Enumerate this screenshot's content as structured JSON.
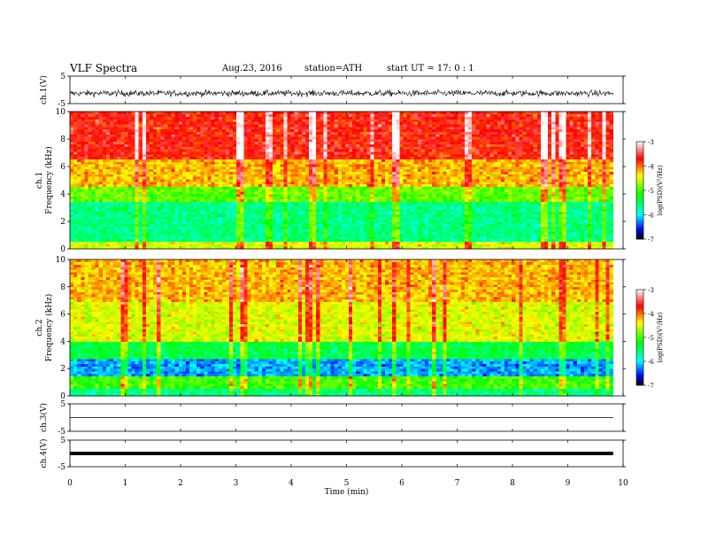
{
  "header": {
    "title": "VLF  Spectra",
    "date": "Aug.23, 2016",
    "station": "station=ATH",
    "start": "start  UT  =   17: 0  : 1"
  },
  "chart_data": [
    {
      "type": "line",
      "panel": "ch.1 waveform",
      "ylabel": "ch.1(V)",
      "ylim": [
        -5,
        5
      ],
      "y_ticks": [
        "5",
        "-5"
      ],
      "xlim": [
        0,
        10
      ],
      "x_extent_min": 9.82,
      "signal_range": [
        -3,
        0.5
      ],
      "trace_color": "#000000"
    },
    {
      "type": "heatmap",
      "panel": "ch.1 spectrogram",
      "ylabel": "ch.1\nFrequency (kHz)",
      "ylabel_lines": [
        "ch.1",
        "Frequency (kHz)"
      ],
      "ylim": [
        0,
        10
      ],
      "y_ticks": [
        "10",
        "8",
        "6",
        "4",
        "2",
        "0"
      ],
      "xlim": [
        0,
        10
      ],
      "x_extent_min": 9.82,
      "dominant_levels_by_freq_kHz": [
        {
          "from": 0,
          "to": 0.5,
          "level": -4.5
        },
        {
          "from": 0.5,
          "to": 3.5,
          "level": -5.6
        },
        {
          "from": 3.5,
          "to": 4.5,
          "level": -4.9
        },
        {
          "from": 4.5,
          "to": 6.5,
          "level": -4.2
        },
        {
          "from": 6.5,
          "to": 10,
          "level": -3.7
        }
      ]
    },
    {
      "type": "heatmap",
      "panel": "ch.2 spectrogram",
      "ylabel": "ch.2\nFrequency (kHz)",
      "ylabel_lines": [
        "ch.2",
        "Frequency (kHz)"
      ],
      "ylim": [
        0,
        10
      ],
      "y_ticks": [
        "10",
        "8",
        "6",
        "4",
        "2",
        "0"
      ],
      "xlim": [
        0,
        10
      ],
      "x_extent_min": 9.82,
      "dominant_levels_by_freq_kHz": [
        {
          "from": 0,
          "to": 0.5,
          "level": -5.6
        },
        {
          "from": 0.5,
          "to": 1.5,
          "level": -5.0
        },
        {
          "from": 1.5,
          "to": 2.7,
          "level": -6.2
        },
        {
          "from": 2.7,
          "to": 4,
          "level": -5.4
        },
        {
          "from": 4,
          "to": 7,
          "level": -4.5
        },
        {
          "from": 7,
          "to": 10,
          "level": -4.2
        }
      ]
    },
    {
      "type": "line",
      "panel": "ch.3 waveform",
      "ylabel": "ch.3(V)",
      "ylim": [
        -5,
        5
      ],
      "y_ticks": [
        "5",
        "-5"
      ],
      "xlim": [
        0,
        10
      ],
      "x_extent_min": 9.82,
      "signal_level": 0,
      "trace_color": "#000000"
    },
    {
      "type": "line",
      "panel": "ch.4 waveform",
      "ylabel": "ch.4(V)",
      "ylim": [
        -5,
        5
      ],
      "y_ticks": [
        "5",
        "-5"
      ],
      "xlim": [
        0,
        10
      ],
      "x_extent_min": 9.82,
      "signal_level": 0,
      "trace_color": "#000000"
    }
  ],
  "colorbars": [
    {
      "label": "log(PSD)(V²/Hz)",
      "ticks": [
        "-3",
        "-4",
        "-5",
        "-6",
        "-7"
      ],
      "range": [
        -7,
        -3
      ],
      "colors": [
        "#000000",
        "#0000ff",
        "#00ffff",
        "#00ff00",
        "#ffff00",
        "#ff0000",
        "#ffffff"
      ]
    },
    {
      "label": "log(PSD)(V²/Hz)",
      "ticks": [
        "-3",
        "-4",
        "-5",
        "-6",
        "-7"
      ],
      "range": [
        -7,
        -3
      ],
      "colors": [
        "#000000",
        "#0000ff",
        "#00ffff",
        "#00ff00",
        "#ffff00",
        "#ff0000",
        "#ffffff"
      ]
    }
  ],
  "x_axis": {
    "label": "Time  (min)",
    "ticks": [
      "0",
      "1",
      "2",
      "3",
      "4",
      "5",
      "6",
      "7",
      "8",
      "9",
      "10"
    ]
  }
}
